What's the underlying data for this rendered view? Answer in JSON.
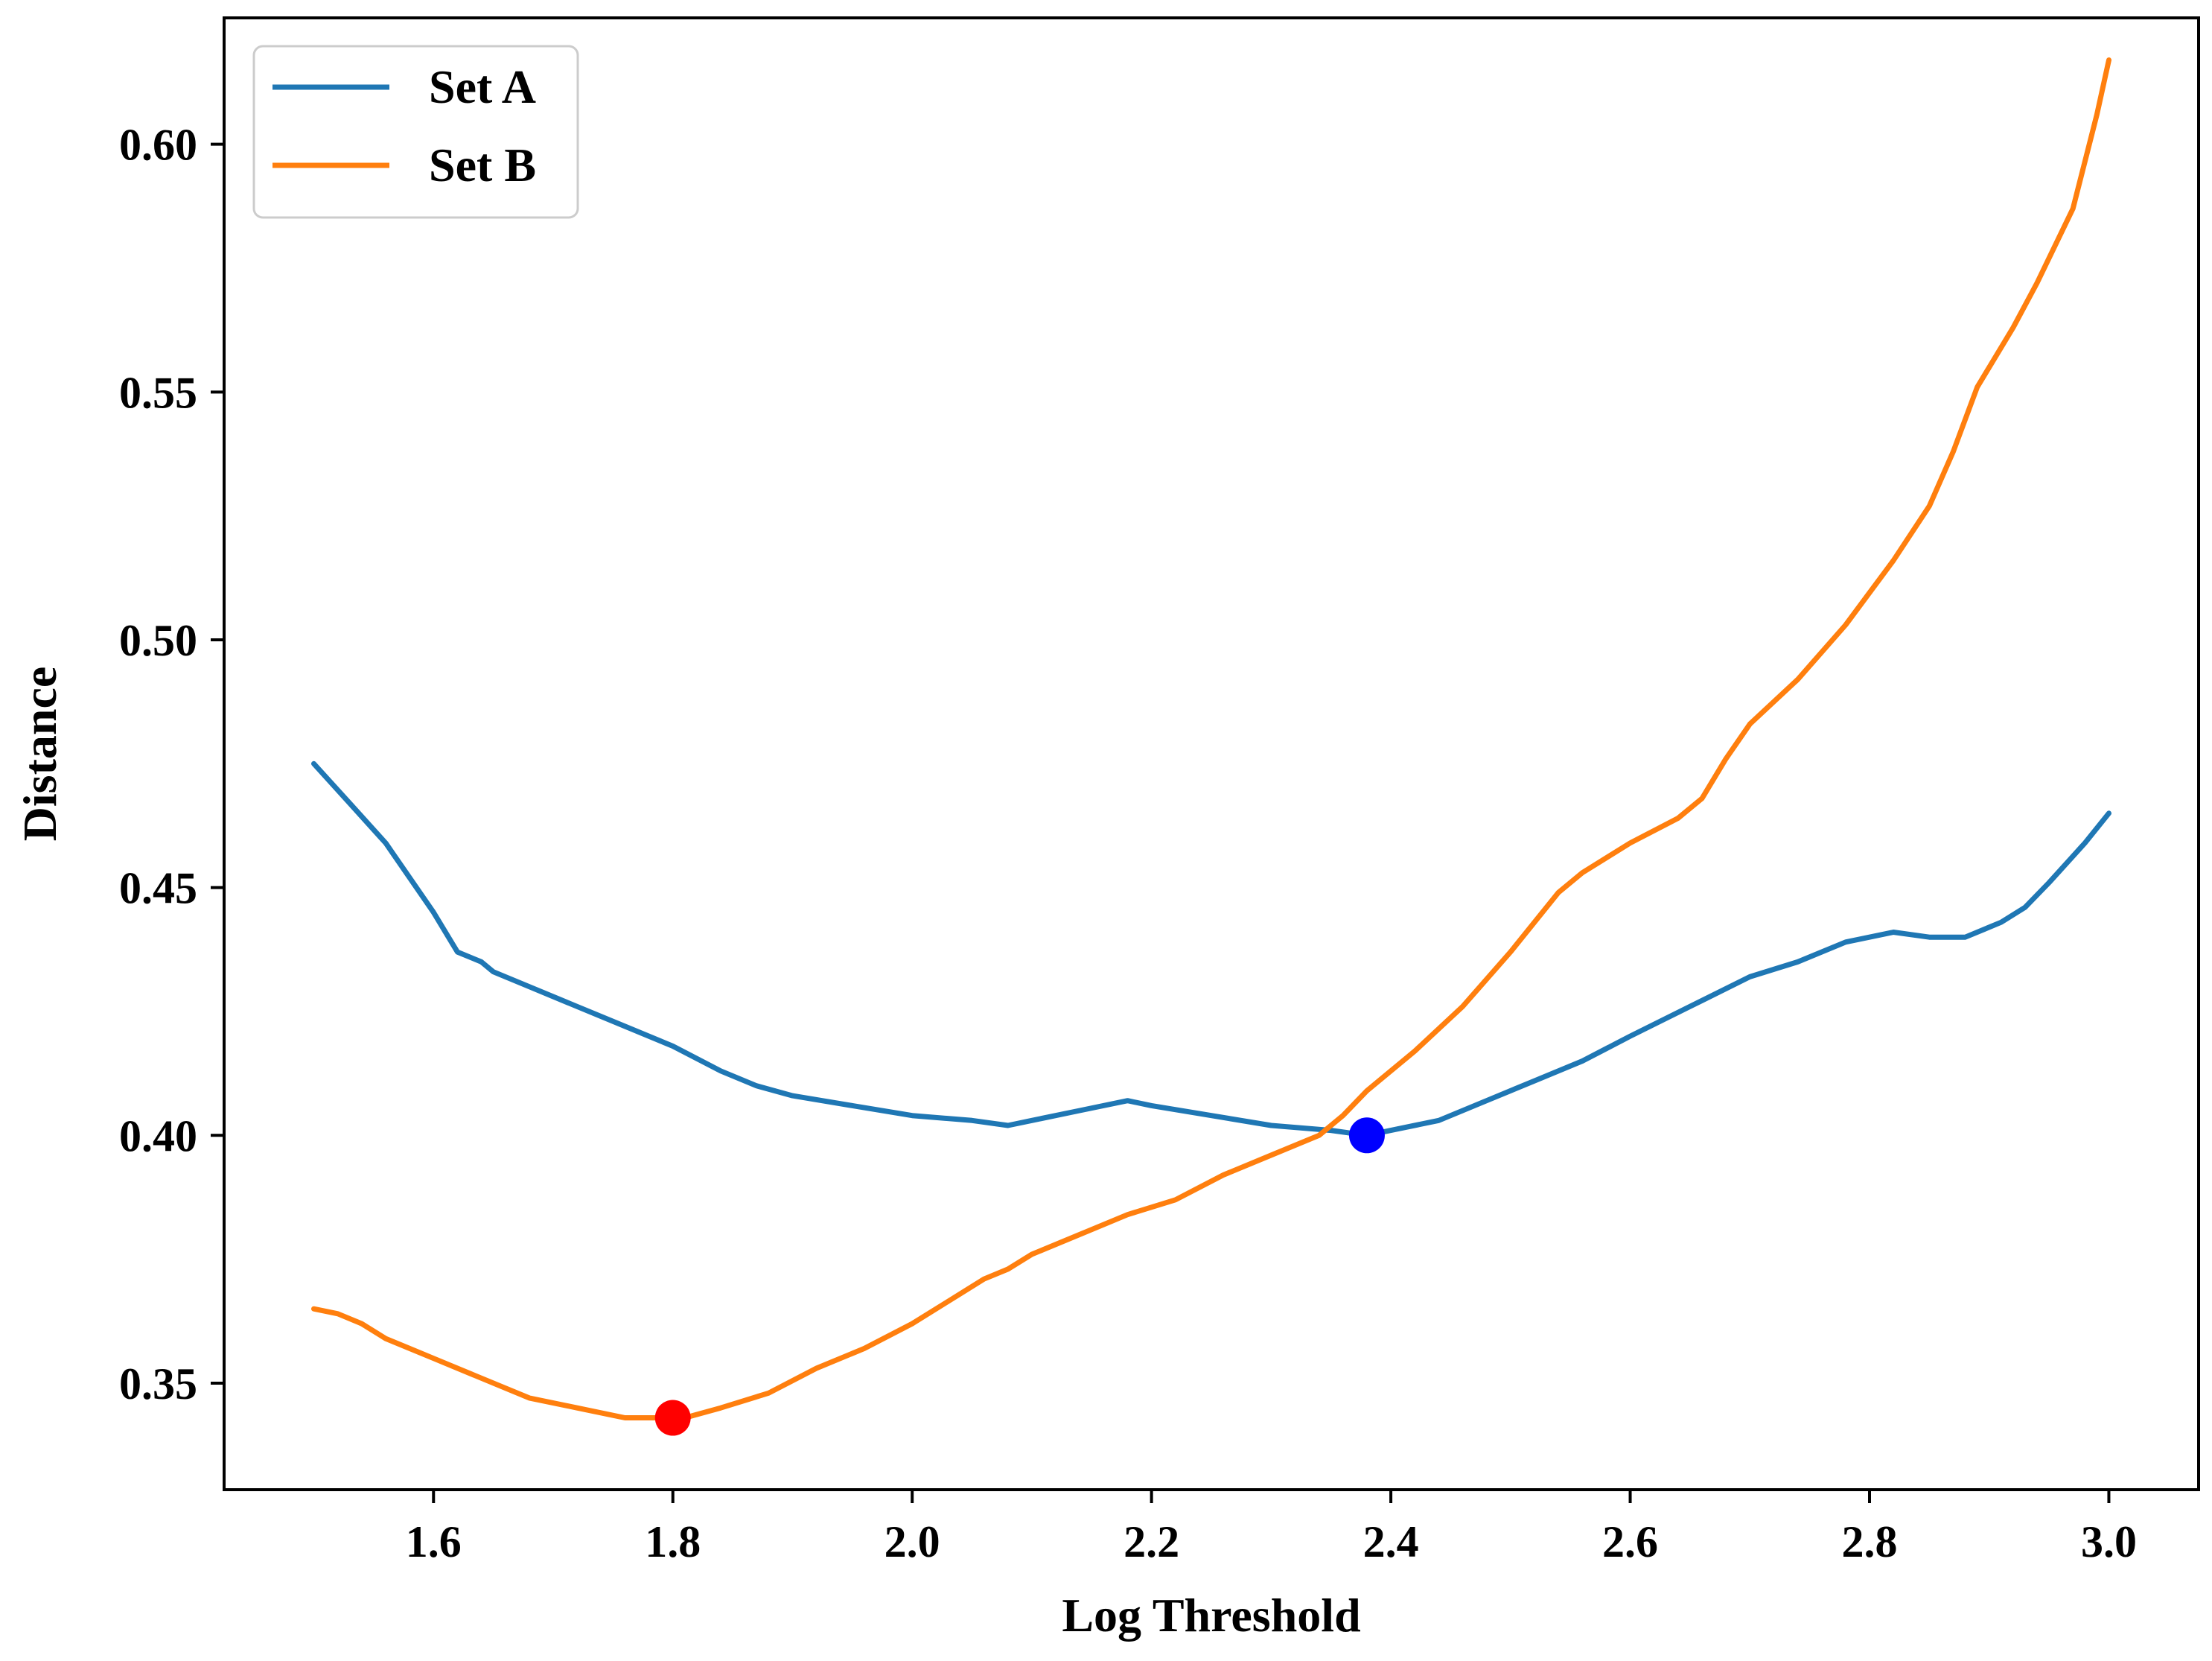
{
  "chart_data": {
    "type": "line",
    "title": "",
    "xlabel": "Log Threshold",
    "ylabel": "Distance",
    "xlim": [
      1.425,
      3.075
    ],
    "ylim": [
      0.3285,
      0.6255
    ],
    "x_ticks": [
      1.6,
      1.8,
      2.0,
      2.2,
      2.4,
      2.6,
      2.8,
      3.0
    ],
    "x_tick_labels": [
      "1.6",
      "1.8",
      "2.0",
      "2.2",
      "2.4",
      "2.6",
      "2.8",
      "3.0"
    ],
    "y_ticks": [
      0.35,
      0.4,
      0.45,
      0.5,
      0.55,
      0.6
    ],
    "y_tick_labels": [
      "0.35",
      "0.40",
      "0.45",
      "0.50",
      "0.55",
      "0.60"
    ],
    "grid": false,
    "legend_position": "top-left",
    "series": [
      {
        "name": "Set A",
        "color": "#1f77b4",
        "x": [
          1.5,
          1.53,
          1.56,
          1.58,
          1.6,
          1.62,
          1.64,
          1.65,
          1.68,
          1.72,
          1.76,
          1.8,
          1.84,
          1.87,
          1.9,
          1.95,
          2.0,
          2.05,
          2.08,
          2.1,
          2.14,
          2.18,
          2.2,
          2.25,
          2.3,
          2.35,
          2.38,
          2.4,
          2.44,
          2.48,
          2.52,
          2.56,
          2.6,
          2.65,
          2.7,
          2.74,
          2.78,
          2.82,
          2.85,
          2.88,
          2.91,
          2.93,
          2.95,
          2.98,
          3.0
        ],
        "y": [
          0.475,
          0.467,
          0.459,
          0.452,
          0.445,
          0.437,
          0.435,
          0.433,
          0.43,
          0.426,
          0.422,
          0.418,
          0.413,
          0.41,
          0.408,
          0.406,
          0.404,
          0.403,
          0.402,
          0.403,
          0.405,
          0.407,
          0.406,
          0.404,
          0.402,
          0.401,
          0.4,
          0.401,
          0.403,
          0.407,
          0.411,
          0.415,
          0.42,
          0.426,
          0.432,
          0.435,
          0.439,
          0.441,
          0.44,
          0.44,
          0.443,
          0.446,
          0.451,
          0.459,
          0.465
        ]
      },
      {
        "name": "Set B",
        "color": "#ff7f0e",
        "x": [
          1.5,
          1.52,
          1.54,
          1.56,
          1.58,
          1.6,
          1.64,
          1.68,
          1.72,
          1.76,
          1.79,
          1.81,
          1.84,
          1.88,
          1.92,
          1.96,
          2.0,
          2.02,
          2.04,
          2.06,
          2.08,
          2.1,
          2.14,
          2.18,
          2.22,
          2.26,
          2.3,
          2.34,
          2.36,
          2.38,
          2.42,
          2.46,
          2.5,
          2.54,
          2.56,
          2.6,
          2.64,
          2.66,
          2.68,
          2.7,
          2.74,
          2.78,
          2.82,
          2.85,
          2.87,
          2.89,
          2.92,
          2.94,
          2.97,
          2.99,
          3.0
        ],
        "y": [
          0.365,
          0.364,
          0.362,
          0.359,
          0.357,
          0.355,
          0.351,
          0.347,
          0.345,
          0.343,
          0.343,
          0.343,
          0.345,
          0.348,
          0.353,
          0.357,
          0.362,
          0.365,
          0.368,
          0.371,
          0.373,
          0.376,
          0.38,
          0.384,
          0.387,
          0.392,
          0.396,
          0.4,
          0.404,
          0.409,
          0.417,
          0.426,
          0.437,
          0.449,
          0.453,
          0.459,
          0.464,
          0.468,
          0.476,
          0.483,
          0.492,
          0.503,
          0.516,
          0.527,
          0.538,
          0.551,
          0.563,
          0.572,
          0.587,
          0.606,
          0.617
        ]
      }
    ],
    "markers": [
      {
        "name": "Set B minimum",
        "x": 1.8,
        "y": 0.343,
        "color": "#ff0000"
      },
      {
        "name": "Set A minimum",
        "x": 2.38,
        "y": 0.4,
        "color": "#0000ff"
      }
    ]
  }
}
